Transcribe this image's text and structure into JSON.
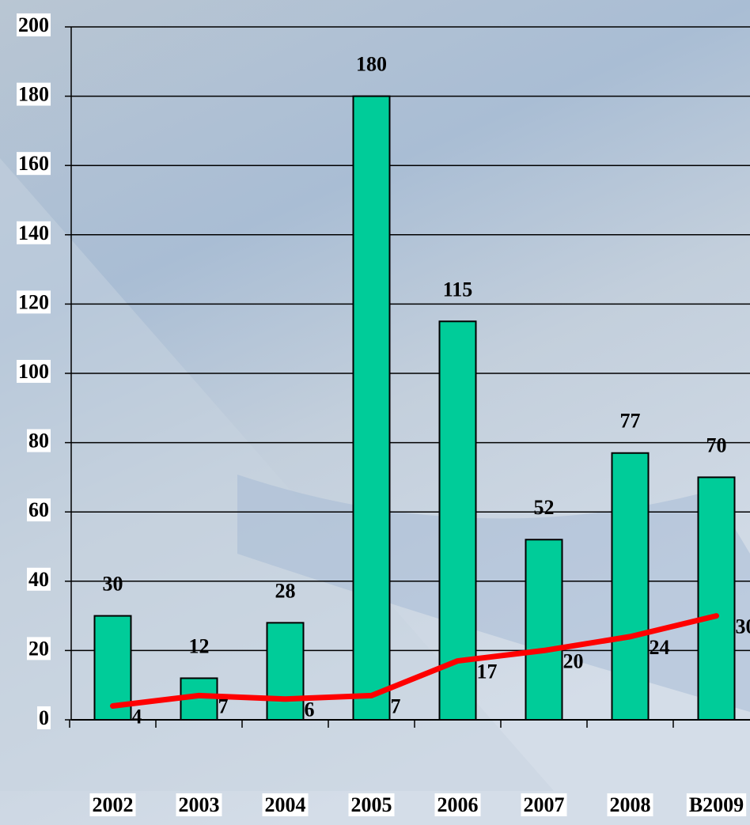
{
  "chart_data": {
    "type": "bar",
    "categories": [
      "2002",
      "2003",
      "2004",
      "2005",
      "2006",
      "2007",
      "2008",
      "B2009"
    ],
    "series": [
      {
        "type": "bar",
        "color": "#00cc99",
        "values": [
          30,
          12,
          28,
          180,
          115,
          52,
          77,
          70
        ]
      },
      {
        "type": "line",
        "color": "#ff0000",
        "values": [
          4,
          7,
          6,
          7,
          17,
          20,
          24,
          30
        ]
      }
    ],
    "ylim": [
      0,
      200
    ],
    "yticks": [
      0,
      20,
      40,
      60,
      80,
      100,
      120,
      140,
      160,
      180,
      200
    ],
    "grid": true
  }
}
